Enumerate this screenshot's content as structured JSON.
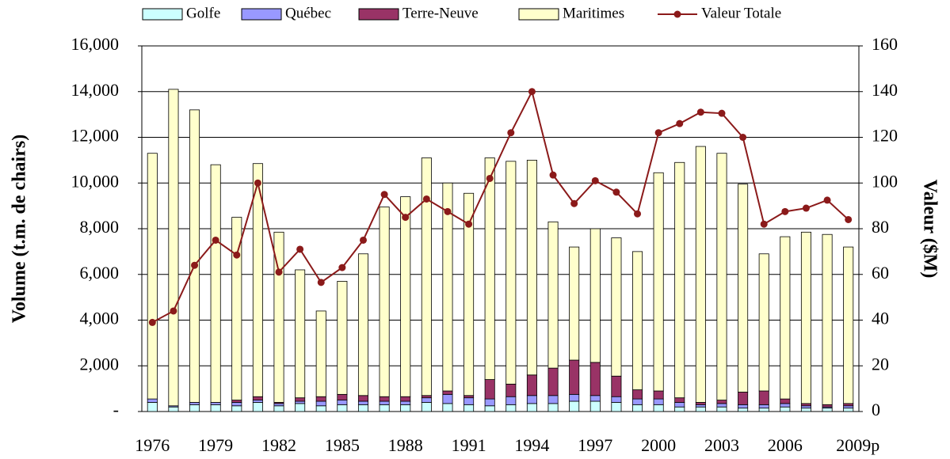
{
  "chart_data": {
    "type": "bar",
    "categories": [
      "1976",
      null,
      null,
      "1979",
      null,
      null,
      "1982",
      null,
      null,
      "1985",
      null,
      null,
      "1988",
      null,
      null,
      "1991",
      null,
      null,
      "1994",
      null,
      null,
      "1997",
      null,
      null,
      "2000",
      null,
      null,
      "2003",
      null,
      null,
      "2006",
      null,
      null,
      "2009p"
    ],
    "series": [
      {
        "name": "Golfe",
        "color": "#ccffff",
        "values": [
          400,
          200,
          300,
          300,
          250,
          400,
          250,
          350,
          250,
          300,
          300,
          300,
          300,
          400,
          350,
          300,
          250,
          300,
          350,
          350,
          450,
          450,
          400,
          300,
          300,
          200,
          200,
          200,
          150,
          150,
          200,
          150,
          150,
          150
        ]
      },
      {
        "name": "Québec",
        "color": "#9999ff",
        "values": [
          150,
          50,
          100,
          100,
          150,
          100,
          100,
          100,
          200,
          200,
          150,
          150,
          150,
          200,
          400,
          300,
          300,
          350,
          350,
          350,
          300,
          250,
          250,
          250,
          250,
          200,
          100,
          150,
          150,
          150,
          150,
          100,
          50,
          100
        ]
      },
      {
        "name": "Terre-Neuve",
        "color": "#993366",
        "values": [
          0,
          0,
          0,
          0,
          100,
          150,
          50,
          150,
          200,
          250,
          250,
          200,
          200,
          100,
          150,
          100,
          850,
          550,
          900,
          1200,
          1500,
          1450,
          900,
          400,
          350,
          200,
          100,
          150,
          550,
          600,
          200,
          100,
          100,
          100
        ]
      },
      {
        "name": "Maritimes",
        "color": "#ffffcc",
        "values": [
          10750,
          13850,
          12800,
          10400,
          8000,
          10200,
          7450,
          5600,
          3750,
          4950,
          6200,
          8300,
          8750,
          10400,
          9100,
          8850,
          9700,
          9750,
          9400,
          6400,
          4950,
          5850,
          6050,
          6050,
          9550,
          10300,
          11200,
          10800,
          9100,
          6000,
          7100,
          7500,
          7450,
          6850
        ]
      },
      {
        "name": "Valeur Totale",
        "color": "#8b1a1a",
        "axis": "y2",
        "type": "line",
        "values": [
          39,
          44,
          64,
          75,
          68.5,
          100,
          61,
          71,
          56.5,
          63,
          75,
          95,
          85,
          93,
          87.5,
          82,
          102,
          122,
          140,
          103.5,
          91,
          101,
          96,
          86.5,
          122,
          126,
          131,
          130.5,
          120,
          82,
          87.5,
          89,
          92.5,
          84
        ]
      }
    ],
    "ylabel": "Volume (t.m. de chairs)",
    "y2label": "Valeur ($M)",
    "ylim": [
      0,
      16000
    ],
    "yticks": [
      {
        "value": 0,
        "label": "-"
      },
      {
        "value": 2000,
        "label": "2,000"
      },
      {
        "value": 4000,
        "label": "4,000"
      },
      {
        "value": 6000,
        "label": "6,000"
      },
      {
        "value": 8000,
        "label": "8,000"
      },
      {
        "value": 10000,
        "label": "10,000"
      },
      {
        "value": 12000,
        "label": "12,000"
      },
      {
        "value": 14000,
        "label": "14,000"
      },
      {
        "value": 16000,
        "label": "16,000"
      }
    ],
    "y2lim": [
      0,
      160
    ],
    "y2ticks": [
      0,
      20,
      40,
      60,
      80,
      100,
      120,
      140,
      160
    ],
    "grid": true,
    "legend": "top"
  }
}
